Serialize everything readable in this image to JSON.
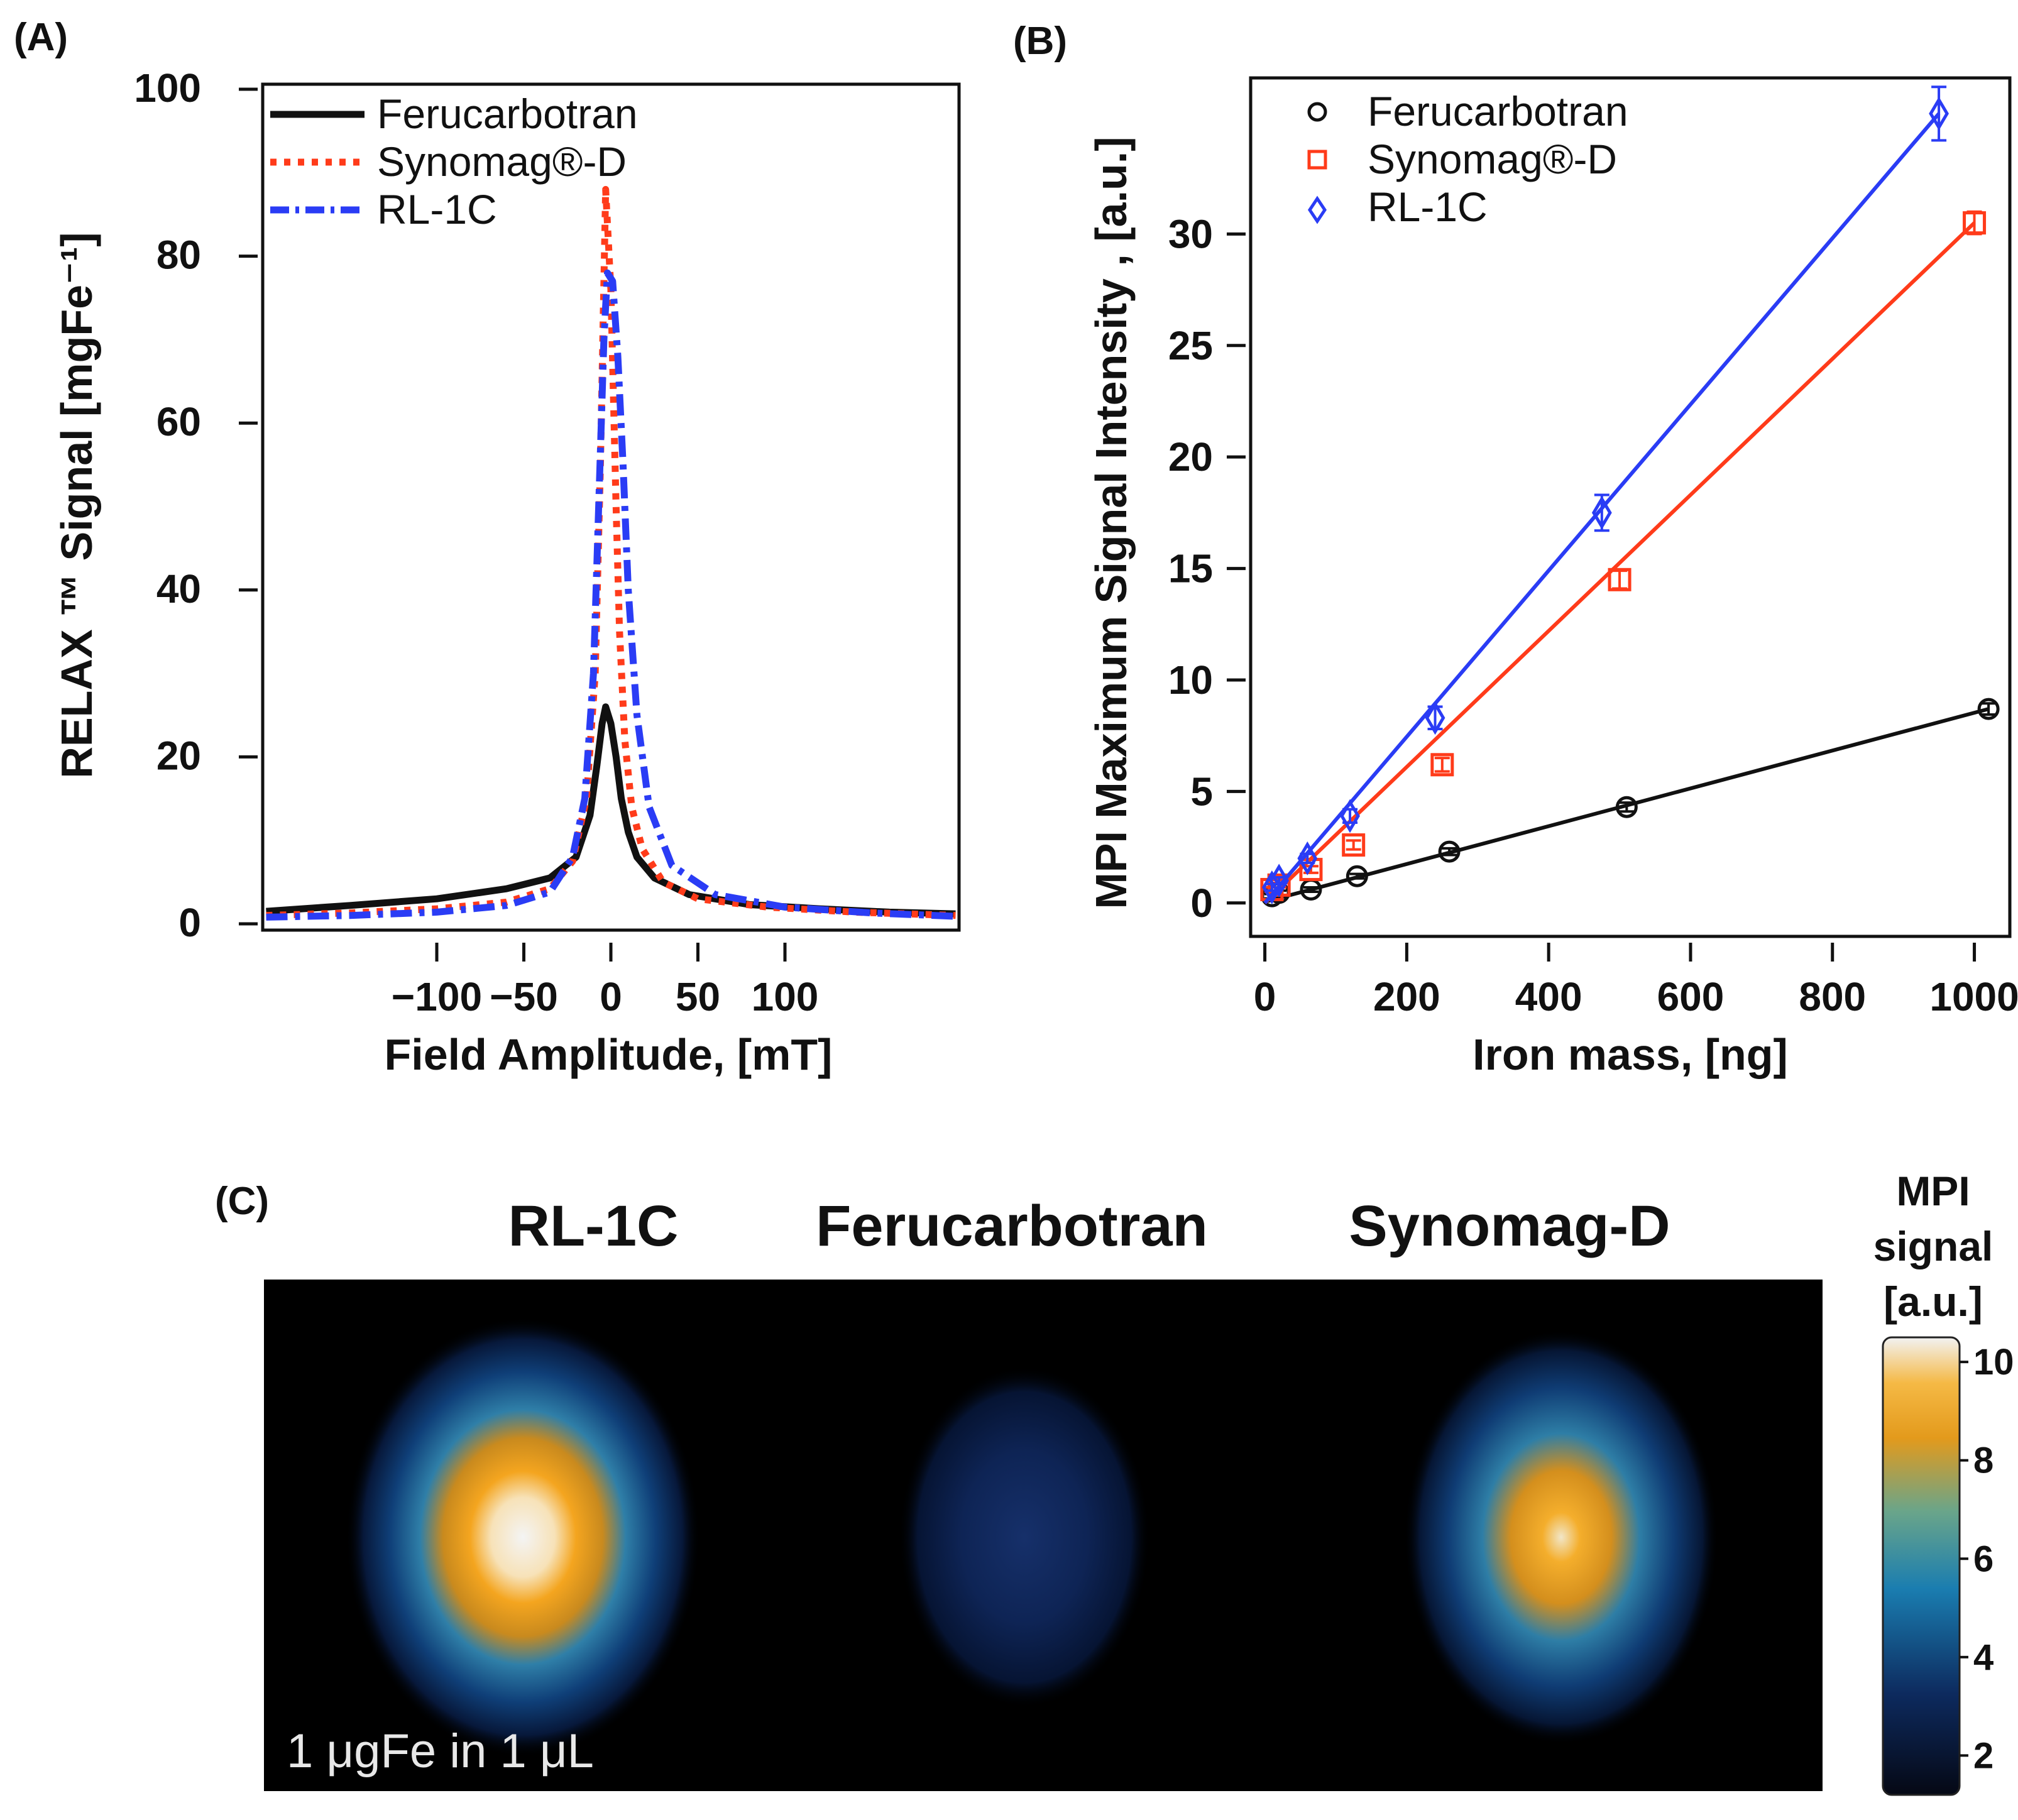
{
  "panels": {
    "a_label": "(A)",
    "b_label": "(B)",
    "c_label": "(C)"
  },
  "chart_data": [
    {
      "id": "A",
      "type": "line",
      "xlabel": "Field Amplitude, [mT]",
      "ylabel": "RELAX ™ Signal [mgFe⁻¹]",
      "xlim": [
        -200,
        200
      ],
      "ylim": [
        0,
        100
      ],
      "xticks": [
        -100,
        -50,
        0,
        50,
        100
      ],
      "yticks": [
        0,
        20,
        40,
        60,
        80,
        100
      ],
      "legend": "top-left",
      "grid": false,
      "series": [
        {
          "name": "Ferucarbotran",
          "color": "#111111",
          "style": "solid",
          "x": [
            -198,
            -150,
            -100,
            -60,
            -35,
            -20,
            -12,
            -8,
            -5,
            -3,
            0,
            3,
            6,
            10,
            15,
            25,
            45,
            80,
            120,
            160,
            198
          ],
          "y": [
            1.5,
            2.2,
            3.0,
            4.2,
            5.5,
            8,
            13,
            19,
            24,
            26,
            24,
            20,
            15,
            11,
            8,
            5.5,
            3.5,
            2.3,
            1.8,
            1.4,
            1.2
          ]
        },
        {
          "name": "Synomag®-D",
          "color": "#ff3b1a",
          "style": "dotted",
          "x": [
            -198,
            -150,
            -100,
            -60,
            -35,
            -22,
            -14,
            -9,
            -6,
            -3,
            0,
            3,
            5,
            8,
            12,
            18,
            30,
            50,
            90,
            140,
            198
          ],
          "y": [
            1.0,
            1.3,
            1.8,
            2.6,
            4.2,
            7.5,
            15,
            30,
            55,
            88,
            76,
            50,
            35,
            22,
            14,
            9,
            5,
            3,
            2,
            1.4,
            1.0
          ]
        },
        {
          "name": "RL-1C",
          "color": "#2a3cf5",
          "style": "dashdot",
          "x": [
            -198,
            -150,
            -100,
            -60,
            -35,
            -22,
            -15,
            -10,
            -7,
            -4,
            -2,
            1,
            4,
            7,
            10,
            15,
            22,
            35,
            60,
            100,
            150,
            198
          ],
          "y": [
            0.8,
            1.0,
            1.4,
            2.2,
            3.8,
            8,
            15,
            30,
            50,
            70,
            78,
            77,
            68,
            55,
            40,
            25,
            14,
            7,
            3.5,
            2,
            1.3,
            0.9
          ]
        }
      ]
    },
    {
      "id": "B",
      "type": "scatter",
      "xlabel": "Iron mass, [ng]",
      "ylabel": "MPI Maximum Signal Intensity , [a.u.]",
      "xlim": [
        -20,
        1050
      ],
      "ylim": [
        -1.5,
        37
      ],
      "xticks": [
        0,
        200,
        400,
        600,
        800,
        1000
      ],
      "yticks": [
        0,
        5,
        10,
        15,
        20,
        25,
        30
      ],
      "legend": "top-left",
      "grid": false,
      "series": [
        {
          "name": "Ferucarbotran",
          "color": "#111111",
          "marker": "circle",
          "x": [
            10,
            20,
            65,
            130,
            260,
            510,
            1020
          ],
          "y": [
            0.3,
            0.45,
            0.6,
            1.2,
            2.3,
            4.3,
            8.7
          ],
          "err": [
            0.1,
            0.1,
            0.1,
            0.1,
            0.15,
            0.2,
            0.25
          ],
          "fit": [
            [
              0,
              0.05
            ],
            [
              1020,
              8.7
            ]
          ]
        },
        {
          "name": "Synomag®-D",
          "color": "#ff3b1a",
          "marker": "square",
          "x": [
            10,
            20,
            65,
            125,
            250,
            500,
            1000
          ],
          "y": [
            0.6,
            0.8,
            1.5,
            2.6,
            6.2,
            14.5,
            30.5
          ],
          "err": [
            0.1,
            0.1,
            0.15,
            0.2,
            0.3,
            0.4,
            0.5
          ],
          "fit": [
            [
              0,
              0.0
            ],
            [
              1000,
              30.5
            ]
          ]
        },
        {
          "name": "RL-1C",
          "color": "#2a3cf5",
          "marker": "diamond",
          "x": [
            10,
            20,
            60,
            120,
            240,
            475,
            950
          ],
          "y": [
            0.7,
            1.0,
            2.0,
            3.9,
            8.3,
            17.5,
            35.4
          ],
          "err": [
            0.15,
            0.15,
            0.2,
            0.3,
            0.5,
            0.8,
            1.2
          ],
          "fit": [
            [
              0,
              0.0
            ],
            [
              950,
              35.4
            ]
          ]
        }
      ]
    },
    {
      "id": "C",
      "type": "heatmap",
      "columns": [
        "RL-1C",
        "Ferucarbotran",
        "Synomag-D"
      ],
      "peak_values": [
        10,
        3,
        9
      ],
      "colorbar": {
        "title_lines": [
          "MPI",
          "signal",
          "[a.u.]"
        ],
        "ticks": [
          2,
          4,
          6,
          8,
          10
        ],
        "range": [
          1.2,
          10.5
        ]
      },
      "annotation": "1 μgFe in 1 μL"
    }
  ]
}
